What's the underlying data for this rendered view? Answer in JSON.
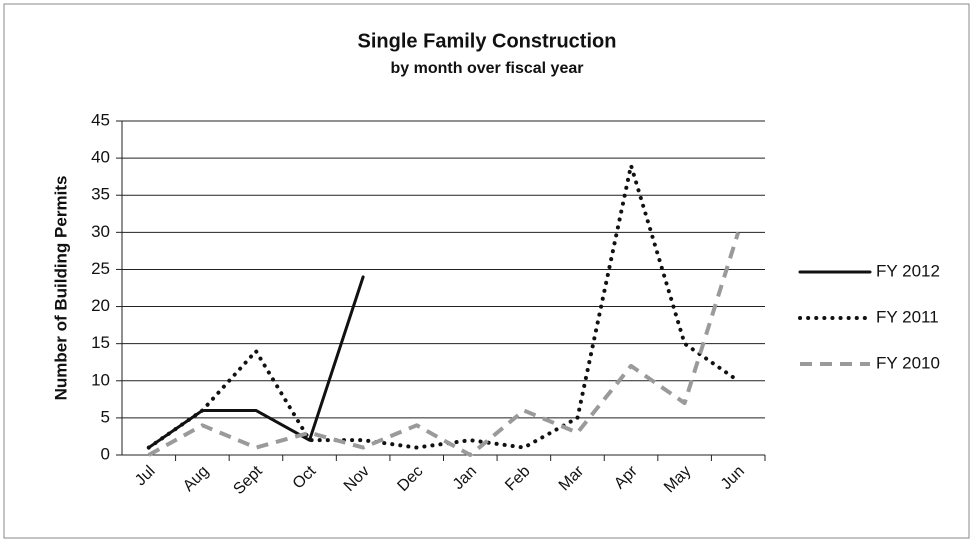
{
  "chart_data": {
    "type": "line",
    "title": "Single Family Construction",
    "subtitle": "by month over fiscal year",
    "y_label": "Number of Building Permits",
    "categories": [
      "Jul",
      "Aug",
      "Sept",
      "Oct",
      "Nov",
      "Dec",
      "Jan",
      "Feb",
      "Mar",
      "Apr",
      "May",
      "Jun"
    ],
    "series": [
      {
        "name": "FY 2012",
        "color": "#111111",
        "style": "solid",
        "values": [
          1,
          6,
          6,
          2,
          24,
          null,
          null,
          null,
          null,
          null,
          null,
          null
        ]
      },
      {
        "name": "FY 2011",
        "color": "#111111",
        "style": "dotted",
        "values": [
          1,
          6,
          14,
          2,
          2,
          1,
          2,
          1,
          5,
          39,
          15,
          10
        ]
      },
      {
        "name": "FY 2010",
        "color": "#9a9a9a",
        "style": "dashed",
        "values": [
          0,
          4,
          1,
          3,
          1,
          4,
          0,
          6,
          3,
          12,
          7,
          30
        ]
      }
    ],
    "ylim": [
      0,
      45
    ],
    "yticks": [
      0,
      5,
      10,
      15,
      20,
      25,
      30,
      35,
      40,
      45
    ],
    "grid": true,
    "legend": "right"
  }
}
